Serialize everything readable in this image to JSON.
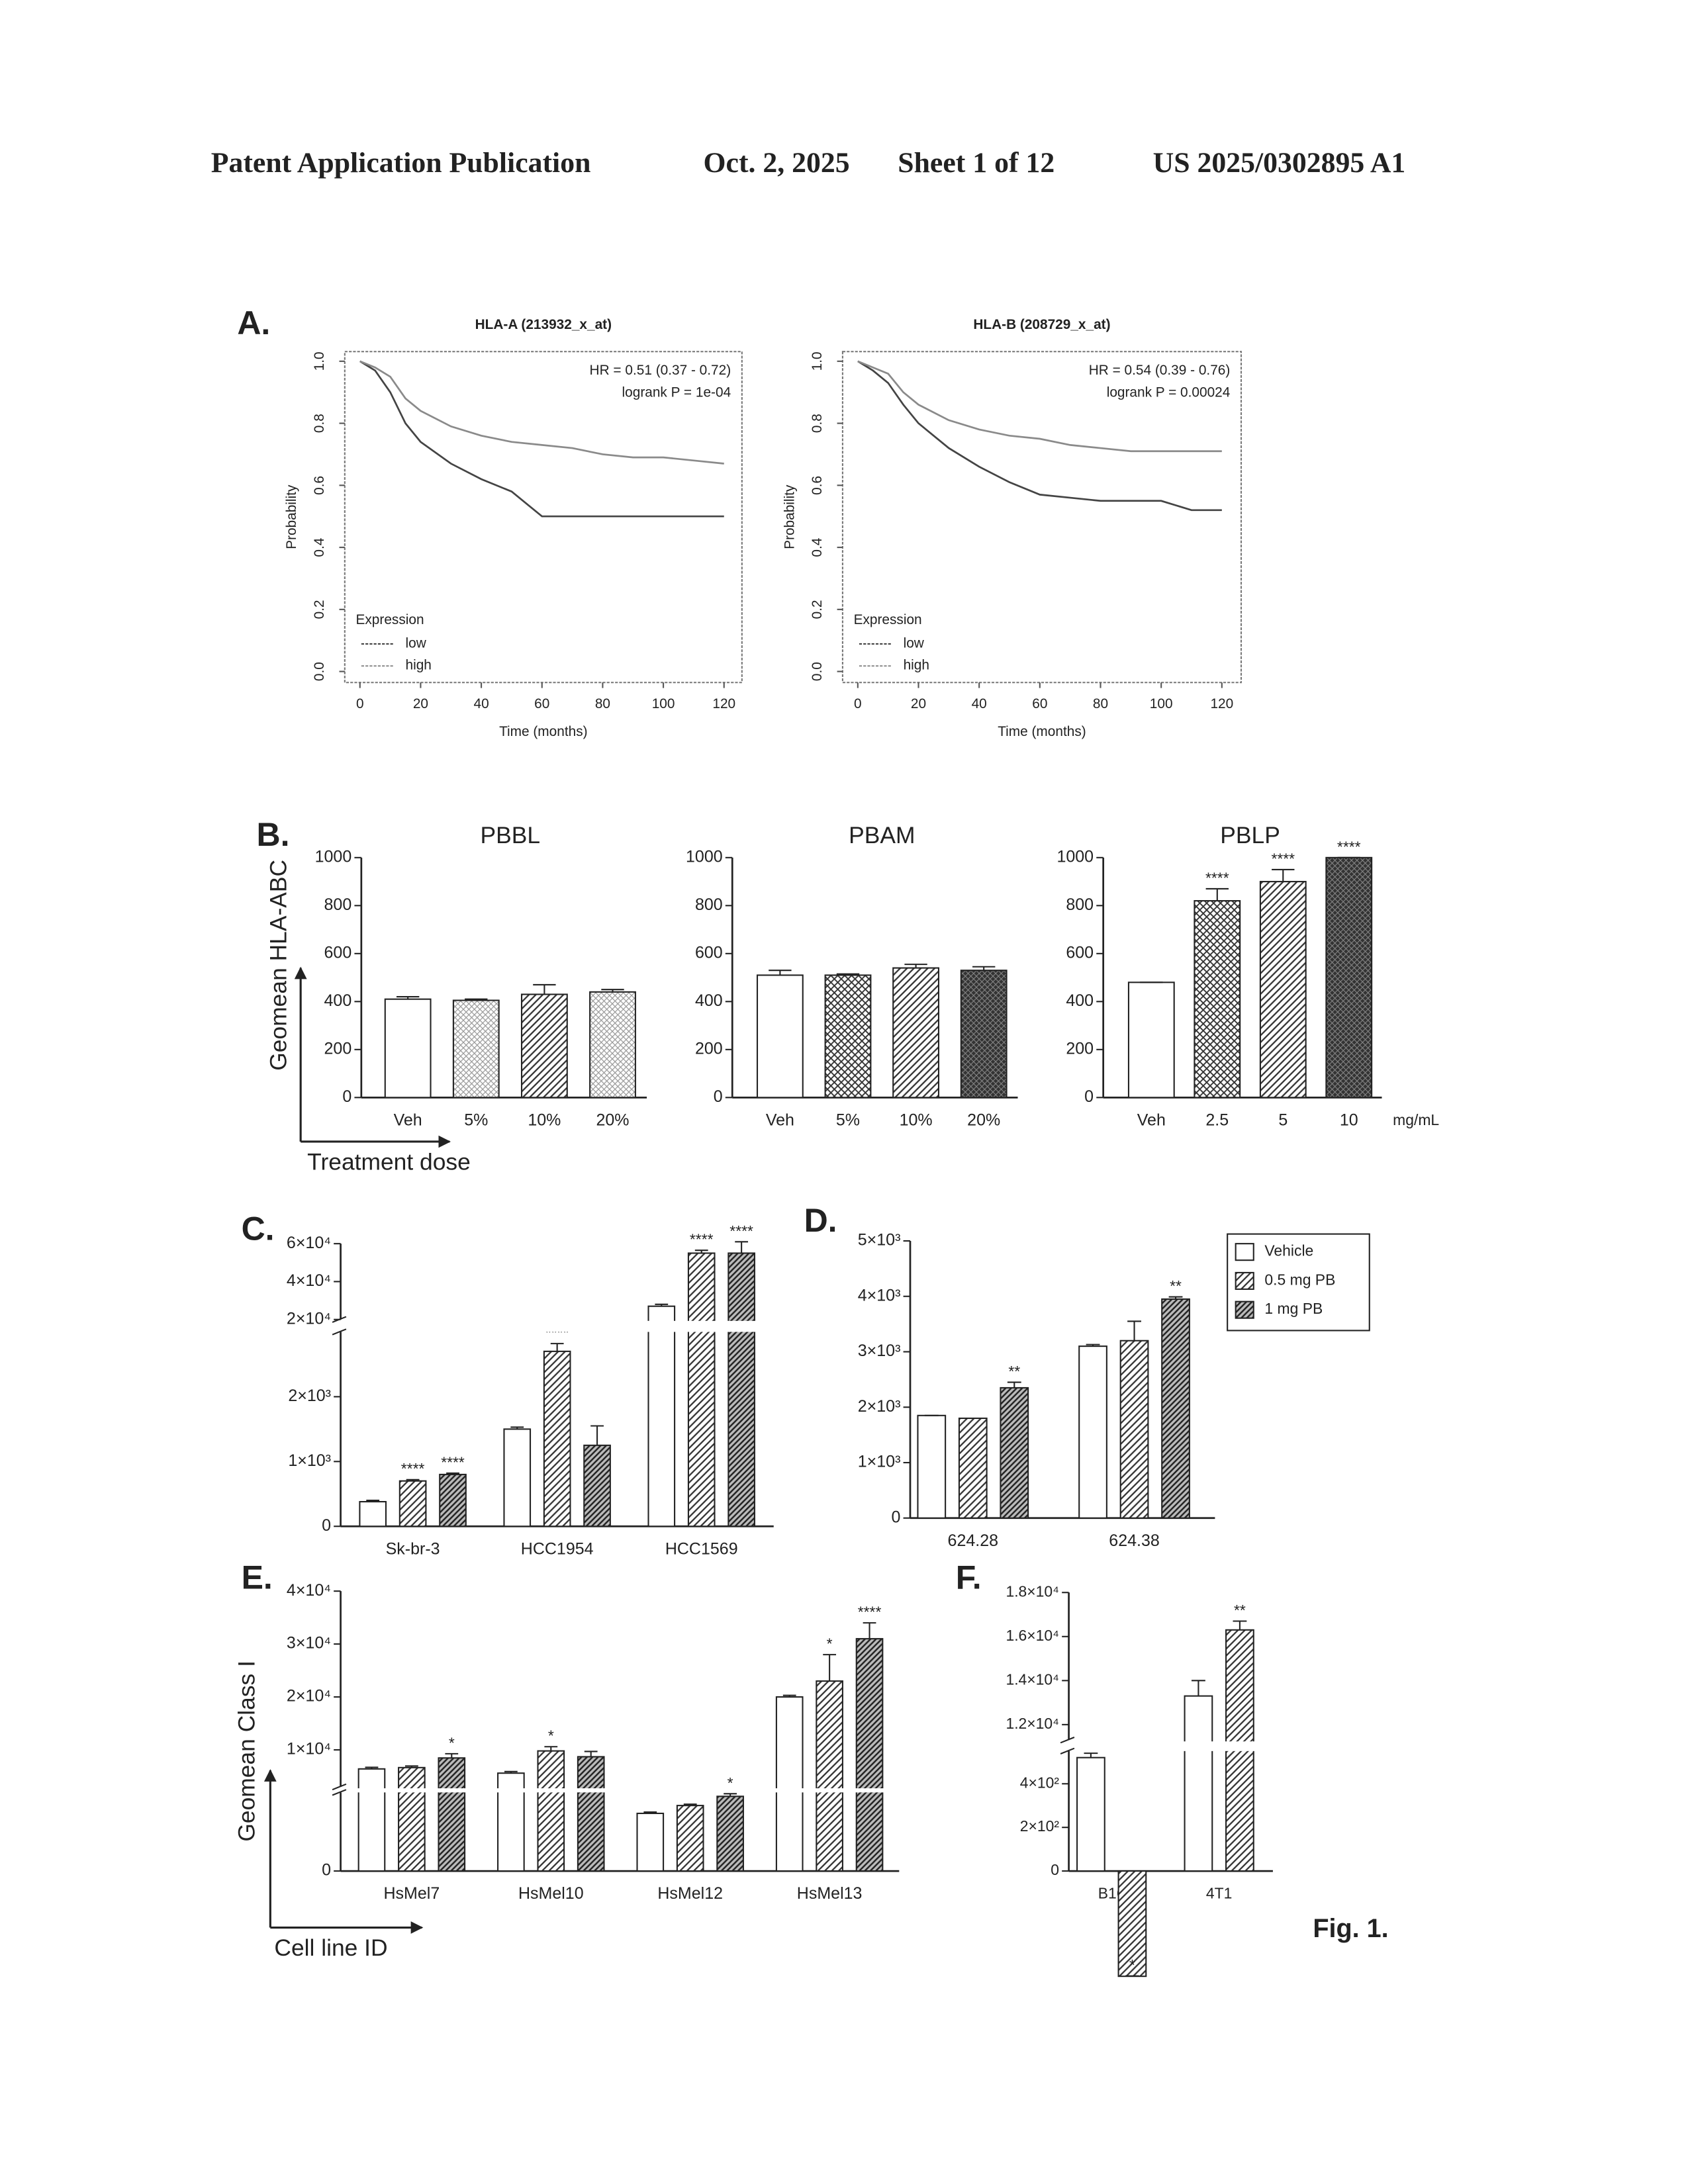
{
  "header": {
    "left": "Patent Application Publication",
    "date": "Oct. 2, 2025",
    "sheet": "Sheet 1 of 12",
    "number": "US 2025/0302895 A1"
  },
  "caption": "Fig. 1.",
  "chart_data": [
    {
      "type": "line",
      "panel": "A.",
      "title": "HLA-A (213932_x_at)",
      "xlabel": "Time (months)",
      "ylabel": "Probability",
      "annotations": [
        "HR = 0.51 (0.37 - 0.72)",
        "logrank P = 1e-04"
      ],
      "legend_title": "Expression",
      "x": [
        0,
        5,
        10,
        15,
        20,
        30,
        40,
        50,
        60,
        70,
        80,
        90,
        100,
        110,
        120
      ],
      "series": [
        {
          "name": "low",
          "color": "#444444",
          "values": [
            1,
            0.97,
            0.9,
            0.8,
            0.74,
            0.67,
            0.62,
            0.58,
            0.5,
            0.5,
            0.5,
            0.5,
            0.5,
            0.5,
            0.5
          ]
        },
        {
          "name": "high",
          "color": "#8a8a8a",
          "values": [
            1,
            0.98,
            0.95,
            0.88,
            0.84,
            0.79,
            0.76,
            0.74,
            0.73,
            0.72,
            0.7,
            0.69,
            0.69,
            0.68,
            0.67
          ]
        }
      ],
      "xlim": [
        0,
        120
      ],
      "xticks": [
        0,
        20,
        40,
        60,
        80,
        100,
        120
      ],
      "ylim": [
        0,
        1
      ],
      "yticks": [
        {
          "value": 0,
          "label": "0.0"
        },
        0.2,
        0.4,
        0.6,
        0.8,
        {
          "value": 1,
          "label": "1.0"
        }
      ]
    },
    {
      "type": "line",
      "title": "HLA-B (208729_x_at)",
      "xlabel": "Time (months)",
      "ylabel": "Probability",
      "annotations": [
        "HR = 0.54 (0.39 - 0.76)",
        "logrank P = 0.00024"
      ],
      "legend_title": "Expression",
      "x": [
        0,
        5,
        10,
        15,
        20,
        30,
        40,
        50,
        60,
        70,
        80,
        90,
        100,
        110,
        120
      ],
      "series": [
        {
          "name": "low",
          "color": "#444444",
          "values": [
            1,
            0.97,
            0.93,
            0.86,
            0.8,
            0.72,
            0.66,
            0.61,
            0.57,
            0.56,
            0.55,
            0.55,
            0.55,
            0.52,
            0.52
          ]
        },
        {
          "name": "high",
          "color": "#8a8a8a",
          "values": [
            1,
            0.98,
            0.96,
            0.9,
            0.86,
            0.81,
            0.78,
            0.76,
            0.75,
            0.73,
            0.72,
            0.71,
            0.71,
            0.71,
            0.71
          ]
        }
      ],
      "xlim": [
        0,
        120
      ],
      "xticks": [
        0,
        20,
        40,
        60,
        80,
        100,
        120
      ],
      "ylim": [
        0,
        1
      ],
      "yticks": [
        {
          "value": 0,
          "label": "0.0"
        },
        0.2,
        0.4,
        0.6,
        0.8,
        {
          "value": 1,
          "label": "1.0"
        }
      ]
    },
    {
      "type": "bar",
      "panel": "B.",
      "title": "PBBL",
      "ylabel": "Geomean HLA-ABC",
      "xlabel": "Treatment dose",
      "edge_color": "#222222",
      "categories": [
        "Veh",
        "5%",
        "10%",
        "20%"
      ],
      "values": [
        410,
        405,
        430,
        440
      ],
      "errors": [
        10,
        5,
        40,
        10
      ],
      "patterns": [
        "none",
        "dots",
        "diagonal",
        "dots"
      ],
      "ylim": [
        0,
        1000
      ],
      "yticks": [
        0,
        200,
        400,
        600,
        800,
        1000
      ]
    },
    {
      "type": "bar",
      "title": "PBAM",
      "edge_color": "#222222",
      "categories": [
        "Veh",
        "5%",
        "10%",
        "20%"
      ],
      "values": [
        510,
        510,
        540,
        530
      ],
      "errors": [
        20,
        5,
        15,
        15
      ],
      "patterns": [
        "none",
        "crosshatch",
        "diagonal",
        "dark"
      ],
      "ylim": [
        0,
        1000
      ],
      "yticks": [
        0,
        200,
        400,
        600,
        800,
        1000
      ]
    },
    {
      "type": "bar",
      "title": "PBLP",
      "x_unit": "mg/mL",
      "edge_color": "#222222",
      "categories": [
        "Veh",
        "2.5",
        "5",
        "10"
      ],
      "values": [
        480,
        820,
        900,
        1000
      ],
      "errors": [
        0,
        50,
        50,
        0
      ],
      "annotations": [
        null,
        "****",
        "****",
        "****"
      ],
      "patterns": [
        "none",
        "crosshatch",
        "diagonal",
        "dark"
      ],
      "ylim": [
        0,
        1000
      ],
      "yticks": [
        0,
        200,
        400,
        600,
        800,
        1000
      ]
    },
    {
      "type": "bar",
      "panel": "C.",
      "edge_color": "#222222",
      "categories": [
        "Sk-br-3",
        "HCC1954",
        "HCC1569"
      ],
      "series": [
        {
          "pattern": "none",
          "values": [
            380,
            1500,
            27000
          ],
          "errors": [
            20,
            30,
            1000
          ]
        },
        {
          "pattern": "diagonal",
          "values": [
            700,
            2700,
            55000
          ],
          "errors": [
            20,
            120,
            1500
          ],
          "annotations": [
            "****",
            "****",
            "****"
          ]
        },
        {
          "pattern": "dense",
          "values": [
            800,
            1250,
            55000
          ],
          "errors": [
            20,
            300,
            6000
          ],
          "annotations": [
            "****",
            null,
            "****"
          ]
        }
      ],
      "ylim": [
        0,
        60000
      ],
      "ybreak": [
        3000,
        20000
      ],
      "yticks": [
        0,
        {
          "value": 1000,
          "label": "1×10³"
        },
        {
          "value": 2000,
          "label": "2×10³"
        },
        {
          "value": 20000,
          "label": "2×10⁴"
        },
        {
          "value": 40000,
          "label": "4×10⁴"
        },
        {
          "value": 60000,
          "label": "6×10⁴"
        }
      ]
    },
    {
      "type": "bar",
      "panel": "D.",
      "edge_color": "#222222",
      "legend": "upper right",
      "categories": [
        "624.28",
        "624.38"
      ],
      "series": [
        {
          "name": "Vehicle",
          "pattern": "none",
          "values": [
            1850,
            3100
          ],
          "errors": [
            0,
            30
          ]
        },
        {
          "name": "0.5 mg PB",
          "pattern": "diagonal",
          "values": [
            1800,
            3200
          ],
          "errors": [
            0,
            350
          ]
        },
        {
          "name": "1 mg PB",
          "pattern": "dense",
          "values": [
            2350,
            3950
          ],
          "errors": [
            100,
            40
          ],
          "annotations": [
            "**",
            "**"
          ]
        }
      ],
      "ylim": [
        0,
        5000
      ],
      "yticks": [
        0,
        {
          "value": 1000,
          "label": "1×10³"
        },
        {
          "value": 2000,
          "label": "2×10³"
        },
        {
          "value": 3000,
          "label": "3×10³"
        },
        {
          "value": 4000,
          "label": "4×10³"
        },
        {
          "value": 5000,
          "label": "5×10³"
        }
      ]
    },
    {
      "type": "bar",
      "panel": "E.",
      "ylabel": "Geomean Class I",
      "xlabel": "Cell line ID",
      "edge_color": "#222222",
      "categories": [
        "HsMel7",
        "HsMel10",
        "HsMel12",
        "HsMel13"
      ],
      "series": [
        {
          "pattern": "none",
          "values": [
            6400,
            5600,
            2200,
            20000
          ],
          "errors": [
            300,
            300,
            50,
            300
          ]
        },
        {
          "pattern": "diagonal",
          "values": [
            6650,
            9800,
            2500,
            23000
          ],
          "errors": [
            300,
            800,
            50,
            5000
          ],
          "annotations": [
            null,
            "*",
            null,
            "*"
          ]
        },
        {
          "pattern": "dense",
          "values": [
            8470,
            8700,
            2850,
            31000
          ],
          "errors": [
            800,
            1000,
            100,
            3000
          ],
          "annotations": [
            "*",
            null,
            "*",
            "****"
          ]
        }
      ],
      "ylim": [
        0,
        40000
      ],
      "ybreak": [
        3000,
        3000
      ],
      "yticks": [
        0,
        {
          "value": 10000,
          "label": "1×10⁴"
        },
        {
          "value": 20000,
          "label": "2×10⁴"
        },
        {
          "value": 30000,
          "label": "3×10⁴"
        },
        {
          "value": 40000,
          "label": "4×10⁴"
        }
      ]
    },
    {
      "type": "bar",
      "panel": "F.",
      "edge_color": "#222222",
      "categories": [
        "B16",
        "4T1"
      ],
      "series": [
        {
          "pattern": "none",
          "values": [
            520,
            13300
          ],
          "errors": [
            20,
            700
          ]
        },
        {
          "pattern": "diagonal",
          "values": [
            570,
            16300
          ],
          "errors": [
            15,
            400
          ],
          "annotations": [
            "*",
            "**"
          ]
        }
      ],
      "ylim": [
        0,
        18000
      ],
      "ybreak": [
        550,
        11300
      ],
      "yticks": [
        0,
        {
          "value": 200,
          "label": "2×10²"
        },
        {
          "value": 400,
          "label": "4×10²"
        },
        {
          "value": 12000,
          "label": "1.2×10⁴"
        },
        {
          "value": 14000,
          "label": "1.4×10⁴"
        },
        {
          "value": 16000,
          "label": "1.6×10⁴"
        },
        {
          "value": 18000,
          "label": "1.8×10⁴"
        }
      ]
    }
  ]
}
